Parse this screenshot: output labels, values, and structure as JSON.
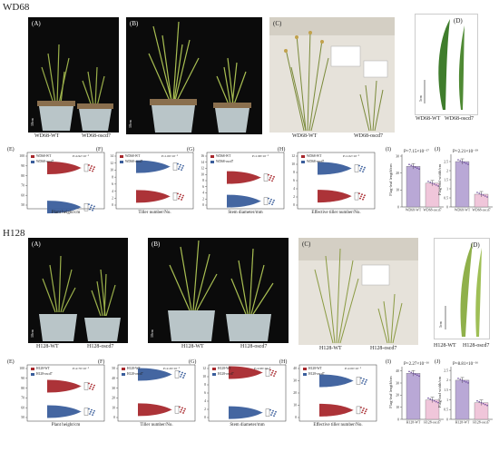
{
  "sections": [
    {
      "title": "WD68",
      "photos": [
        {
          "label": "(A)",
          "scale": "10cm",
          "captions": [
            "WD68-WT",
            "WD68-oscd7"
          ]
        },
        {
          "label": "(B)",
          "scale": "10cm",
          "captions": []
        },
        {
          "label": "(C)",
          "scale": "10cm",
          "captions": [
            "WD68-WT",
            "WD68-oscd7"
          ]
        },
        {
          "label": "(D)",
          "scale": "5cm",
          "captions": [
            "WD68-WT",
            "WD68-oscd7"
          ]
        }
      ],
      "rain": [
        {
          "label": "(E)",
          "xlabel": "Plant height/cm",
          "legend": [
            "WD68-WT",
            "WD68-oscd7"
          ],
          "p": "P=4.92×10⁻⁹",
          "ticks": [
            50,
            60,
            70,
            80,
            90,
            100
          ],
          "wt": 88,
          "mut": 48
        },
        {
          "label": "(F)",
          "xlabel": "Tiller number/No.",
          "legend": [
            "WD68-WT",
            "WD68-oscd7"
          ],
          "p": "P=1.00×10⁻⁹",
          "ticks": [
            0,
            2,
            4,
            6,
            8,
            10,
            12,
            14
          ],
          "wt": 2.5,
          "mut": 11
        },
        {
          "label": "(G)",
          "xlabel": "Stem diameter/mm",
          "legend": [
            "WD68-WT",
            "WD68-oscd7"
          ],
          "p": "P=1.98×10⁻⁹",
          "ticks": [
            0,
            2,
            4,
            6,
            8,
            10,
            12,
            14,
            16
          ],
          "wt": 9,
          "mut": 1.3
        },
        {
          "label": "(H)",
          "xlabel": "Effective tiller number/No.",
          "legend": [
            "WD68-WT",
            "WD68-oscd7"
          ],
          "p": "P=1.02×10⁻⁹",
          "ticks": [
            0,
            2,
            4,
            6,
            8,
            10,
            12
          ],
          "wt": 2.2,
          "mut": 9
        }
      ],
      "bars": [
        {
          "label": "(I)",
          "p": "P=7.15×10⁻¹⁷",
          "ylabel": "Flag-leaf length/cm",
          "ticks": [
            0,
            10,
            20,
            30
          ],
          "ymax": 30,
          "cats": [
            "WD68-WT",
            "WD68-oscd7"
          ],
          "values": [
            24,
            14
          ]
        },
        {
          "label": "(J)",
          "p": "P=2.21×10⁻¹⁹",
          "ylabel": "Flag-leaf width/cm",
          "ticks": [
            0,
            0.5,
            1,
            1.5,
            2,
            2.5
          ],
          "ymax": 2.8,
          "cats": [
            "WD68-WT",
            "WD68-oscd7"
          ],
          "values": [
            2.5,
            0.7
          ]
        }
      ]
    },
    {
      "title": "H128",
      "photos": [
        {
          "label": "(A)",
          "scale": "10cm",
          "captions": [
            "H128-WT",
            "H128-oscd7"
          ]
        },
        {
          "label": "(B)",
          "scale": "10cm",
          "captions": [
            "H128-WT",
            "H128-oscd7"
          ]
        },
        {
          "label": "(C)",
          "scale": "10cm",
          "captions": [
            "H128-WT",
            "H128-oscd7"
          ]
        },
        {
          "label": "(D)",
          "scale": "5cm",
          "captions": [
            "H128-WT",
            "H128-oscd7"
          ]
        }
      ],
      "rain": [
        {
          "label": "(E)",
          "xlabel": "Plant height/cm",
          "legend": [
            "H128-WT",
            "H128-oscd7"
          ],
          "p": "P=2.70×10⁻⁹",
          "ticks": [
            50,
            60,
            70,
            80,
            90,
            100
          ],
          "wt": 82,
          "mut": 56
        },
        {
          "label": "(F)",
          "xlabel": "Tiller number/No.",
          "legend": [
            "H128-WT",
            "H128-oscd7"
          ],
          "p": "P=2.29×10⁻⁹",
          "ticks": [
            0,
            10,
            20,
            30,
            40,
            50
          ],
          "wt": 8,
          "mut": 44
        },
        {
          "label": "(G)",
          "xlabel": "Stem diameter/mm",
          "legend": [
            "H128-WT",
            "H128-oscd7"
          ],
          "p": "P=4.98×10⁻⁹",
          "ticks": [
            0,
            2,
            4,
            6,
            8,
            10,
            12
          ],
          "wt": 11,
          "mut": 1.2
        },
        {
          "label": "(H)",
          "xlabel": "Effective tiller number/No.",
          "legend": [
            "H128-WT",
            "H128-oscd7"
          ],
          "p": "P=2.00×10⁻⁹",
          "ticks": [
            0,
            10,
            20,
            30,
            40
          ],
          "wt": 6,
          "mut": 30
        }
      ],
      "bars": [
        {
          "label": "(I)",
          "p": "P=2.27×10⁻¹⁶",
          "ylabel": "Flag-leaf length/cm",
          "ticks": [
            0,
            10,
            20,
            30,
            40
          ],
          "ymax": 42,
          "cats": [
            "H128-WT",
            "H128-oscd7"
          ],
          "values": [
            38,
            16
          ]
        },
        {
          "label": "(J)",
          "p": "P=8.81×10⁻¹⁶",
          "ylabel": "Flag-leaf width/cm",
          "ticks": [
            0,
            0.5,
            1,
            1.5,
            2,
            2.5
          ],
          "ymax": 2.6,
          "cats": [
            "H128-WT",
            "H128-oscd7"
          ],
          "values": [
            2.0,
            0.85
          ]
        }
      ]
    }
  ],
  "colors": {
    "wt": "#a8282d",
    "mutant": "#3a5e9c",
    "bar_wt": "#b9a8d6",
    "bar_mut": "#f0c6da"
  }
}
